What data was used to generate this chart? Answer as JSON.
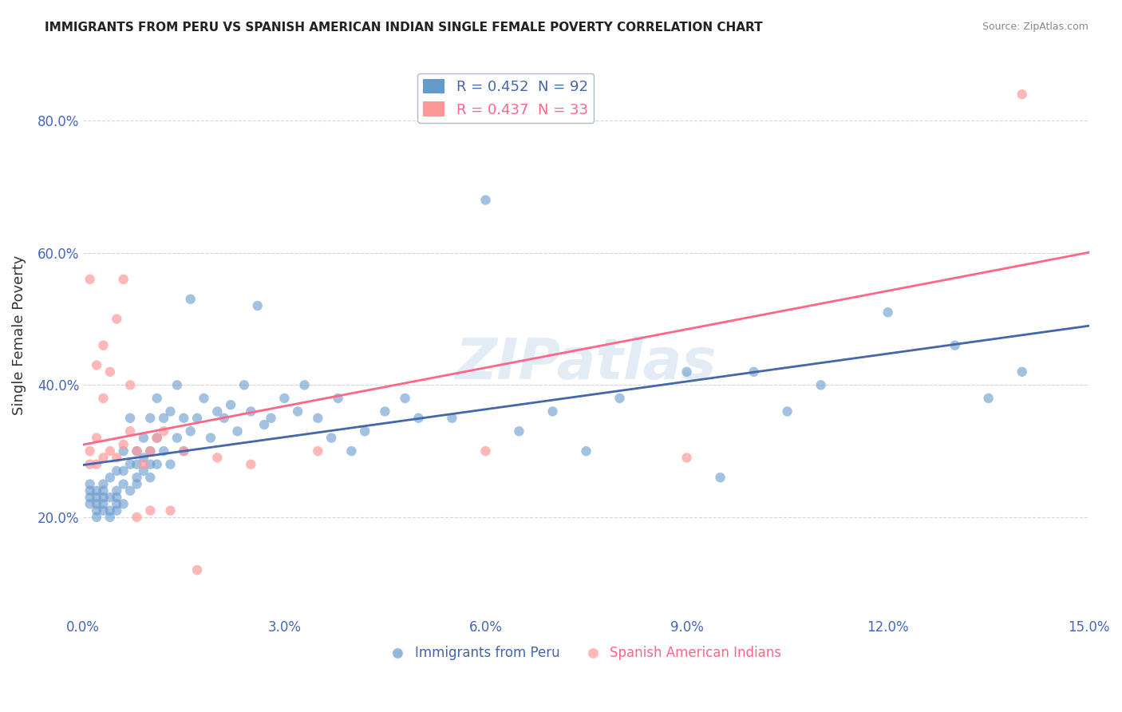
{
  "title": "IMMIGRANTS FROM PERU VS SPANISH AMERICAN INDIAN SINGLE FEMALE POVERTY CORRELATION CHART",
  "source": "Source: ZipAtlas.com",
  "xlabel_blue": "Immigrants from Peru",
  "xlabel_pink": "Spanish American Indians",
  "ylabel": "Single Female Poverty",
  "xlim": [
    0.0,
    0.15
  ],
  "ylim": [
    0.05,
    0.9
  ],
  "xticks": [
    0.0,
    0.03,
    0.06,
    0.09,
    0.12,
    0.15
  ],
  "xtick_labels": [
    "0.0%",
    "3.0%",
    "6.0%",
    "9.0%",
    "12.0%",
    "15.0%"
  ],
  "yticks": [
    0.2,
    0.4,
    0.6,
    0.8
  ],
  "ytick_labels": [
    "20.0%",
    "40.0%",
    "60.0%",
    "80.0%"
  ],
  "blue_R": 0.452,
  "blue_N": 92,
  "pink_R": 0.437,
  "pink_N": 33,
  "blue_color": "#6699CC",
  "pink_color": "#FF9999",
  "blue_line_color": "#4466AA",
  "pink_line_color": "#FF6688",
  "watermark": "ZIPatlas",
  "background_color": "#FFFFFF",
  "blue_x": [
    0.001,
    0.001,
    0.001,
    0.001,
    0.002,
    0.002,
    0.002,
    0.002,
    0.002,
    0.003,
    0.003,
    0.003,
    0.003,
    0.003,
    0.004,
    0.004,
    0.004,
    0.004,
    0.005,
    0.005,
    0.005,
    0.005,
    0.005,
    0.006,
    0.006,
    0.006,
    0.006,
    0.007,
    0.007,
    0.007,
    0.008,
    0.008,
    0.008,
    0.008,
    0.009,
    0.009,
    0.009,
    0.01,
    0.01,
    0.01,
    0.01,
    0.011,
    0.011,
    0.011,
    0.012,
    0.012,
    0.013,
    0.013,
    0.014,
    0.014,
    0.015,
    0.015,
    0.016,
    0.016,
    0.017,
    0.018,
    0.019,
    0.02,
    0.021,
    0.022,
    0.023,
    0.024,
    0.025,
    0.026,
    0.027,
    0.028,
    0.03,
    0.032,
    0.033,
    0.035,
    0.037,
    0.038,
    0.04,
    0.042,
    0.045,
    0.048,
    0.05,
    0.055,
    0.06,
    0.065,
    0.07,
    0.075,
    0.08,
    0.09,
    0.095,
    0.1,
    0.105,
    0.11,
    0.12,
    0.13,
    0.135,
    0.14
  ],
  "blue_y": [
    0.22,
    0.23,
    0.24,
    0.25,
    0.22,
    0.23,
    0.21,
    0.2,
    0.24,
    0.21,
    0.22,
    0.23,
    0.24,
    0.25,
    0.2,
    0.21,
    0.23,
    0.26,
    0.22,
    0.23,
    0.24,
    0.21,
    0.27,
    0.22,
    0.25,
    0.3,
    0.27,
    0.24,
    0.28,
    0.35,
    0.26,
    0.28,
    0.3,
    0.25,
    0.27,
    0.32,
    0.29,
    0.26,
    0.3,
    0.28,
    0.35,
    0.28,
    0.32,
    0.38,
    0.3,
    0.35,
    0.28,
    0.36,
    0.32,
    0.4,
    0.3,
    0.35,
    0.53,
    0.33,
    0.35,
    0.38,
    0.32,
    0.36,
    0.35,
    0.37,
    0.33,
    0.4,
    0.36,
    0.52,
    0.34,
    0.35,
    0.38,
    0.36,
    0.4,
    0.35,
    0.32,
    0.38,
    0.3,
    0.33,
    0.36,
    0.38,
    0.35,
    0.35,
    0.68,
    0.33,
    0.36,
    0.3,
    0.38,
    0.42,
    0.26,
    0.42,
    0.36,
    0.4,
    0.51,
    0.46,
    0.38,
    0.42
  ],
  "pink_x": [
    0.001,
    0.001,
    0.001,
    0.002,
    0.002,
    0.002,
    0.003,
    0.003,
    0.003,
    0.004,
    0.004,
    0.005,
    0.005,
    0.006,
    0.006,
    0.007,
    0.007,
    0.008,
    0.008,
    0.009,
    0.01,
    0.01,
    0.011,
    0.012,
    0.013,
    0.015,
    0.017,
    0.02,
    0.025,
    0.035,
    0.06,
    0.09,
    0.14
  ],
  "pink_y": [
    0.28,
    0.3,
    0.56,
    0.28,
    0.32,
    0.43,
    0.29,
    0.38,
    0.46,
    0.3,
    0.42,
    0.29,
    0.5,
    0.31,
    0.56,
    0.33,
    0.4,
    0.3,
    0.2,
    0.28,
    0.3,
    0.21,
    0.32,
    0.33,
    0.21,
    0.3,
    0.12,
    0.29,
    0.28,
    0.3,
    0.3,
    0.29,
    0.84
  ]
}
